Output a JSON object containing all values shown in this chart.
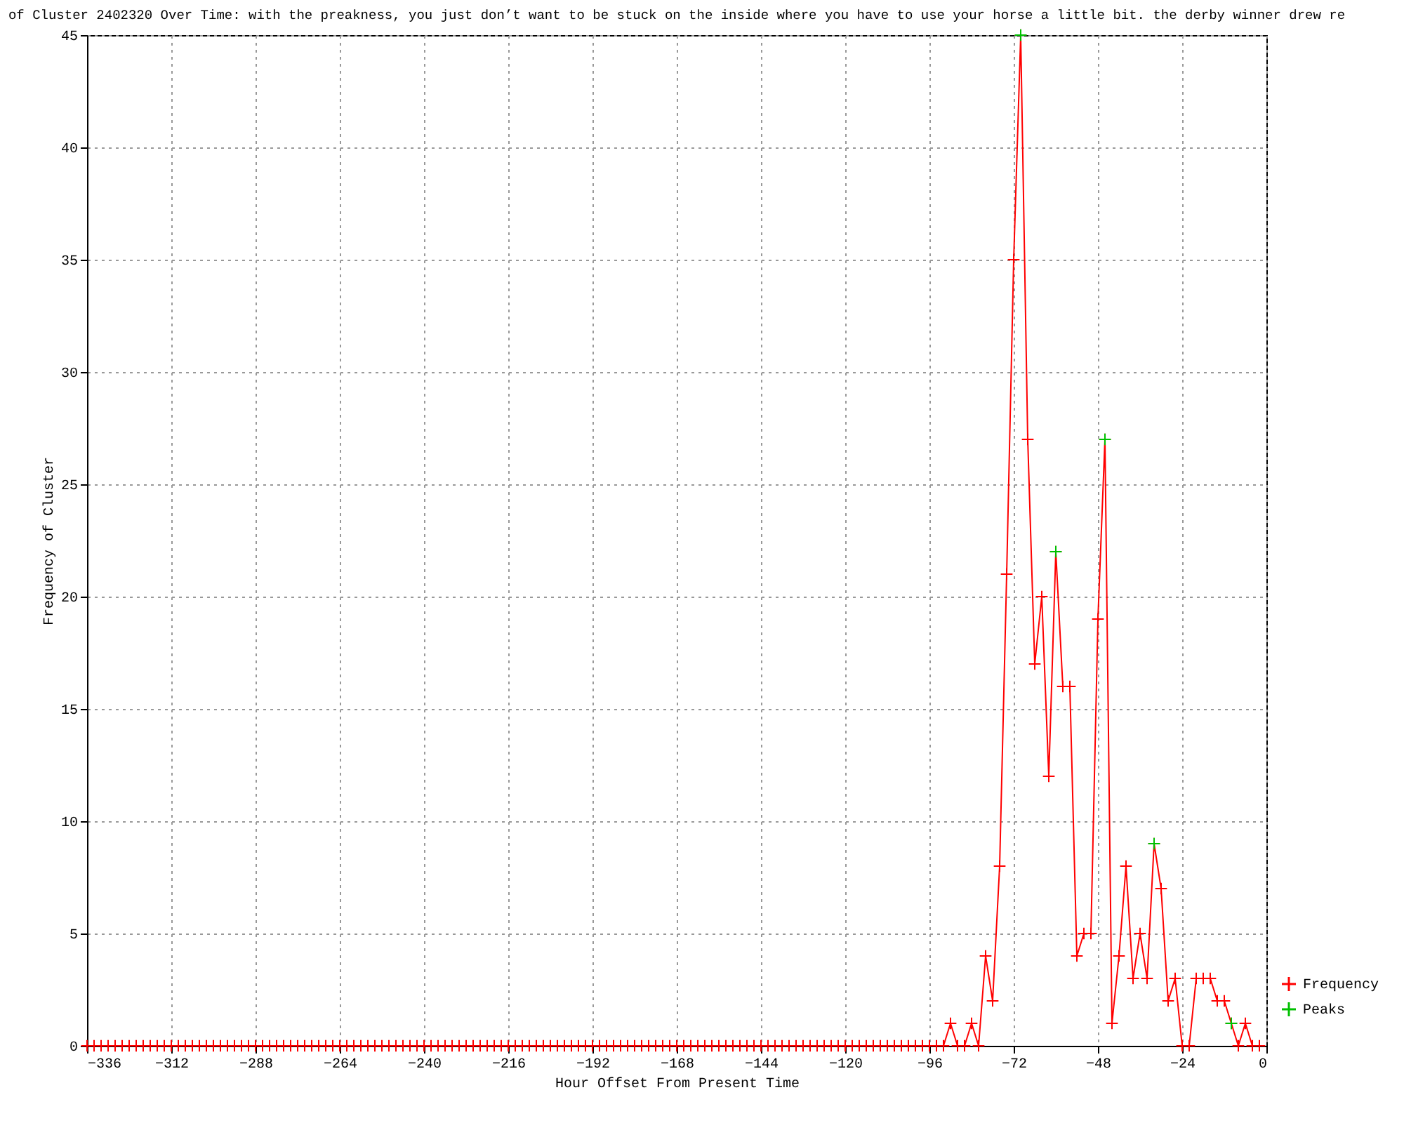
{
  "chart_data": {
    "type": "line",
    "title": "of Cluster 2402320 Over Time: with the preakness, you just don’t want to be stuck on the inside where you have to use your horse a little bit. the derby winner drew re",
    "xlabel": "Hour Offset From Present Time",
    "ylabel": "Frequency of Cluster",
    "xlim": [
      -336,
      0
    ],
    "xticks": [
      -336,
      -312,
      -288,
      -264,
      -240,
      -216,
      -192,
      -168,
      -144,
      -120,
      -96,
      -72,
      -48,
      -24,
      0
    ],
    "ylim": [
      0,
      45
    ],
    "yticks": [
      0,
      5,
      10,
      15,
      20,
      25,
      30,
      35,
      40,
      45
    ],
    "grid": true,
    "legend": "bottom right",
    "series": [
      {
        "name": "Frequency",
        "color": "#ff0000",
        "marker": "cross",
        "x": [
          -336,
          -334,
          -332,
          -330,
          -328,
          -326,
          -324,
          -322,
          -320,
          -318,
          -316,
          -314,
          -312,
          -310,
          -308,
          -306,
          -304,
          -302,
          -300,
          -298,
          -296,
          -294,
          -292,
          -290,
          -288,
          -286,
          -284,
          -282,
          -280,
          -278,
          -276,
          -274,
          -272,
          -270,
          -268,
          -266,
          -264,
          -262,
          -260,
          -258,
          -256,
          -254,
          -252,
          -250,
          -248,
          -246,
          -244,
          -242,
          -240,
          -238,
          -236,
          -234,
          -232,
          -230,
          -228,
          -226,
          -224,
          -222,
          -220,
          -218,
          -216,
          -214,
          -212,
          -210,
          -208,
          -206,
          -204,
          -202,
          -200,
          -198,
          -196,
          -194,
          -192,
          -190,
          -188,
          -186,
          -184,
          -182,
          -180,
          -178,
          -176,
          -174,
          -172,
          -170,
          -168,
          -166,
          -164,
          -162,
          -160,
          -158,
          -156,
          -154,
          -152,
          -150,
          -148,
          -146,
          -144,
          -142,
          -140,
          -138,
          -136,
          -134,
          -132,
          -130,
          -128,
          -126,
          -124,
          -122,
          -120,
          -118,
          -116,
          -114,
          -112,
          -110,
          -108,
          -106,
          -104,
          -102,
          -100,
          -98,
          -96,
          -94,
          -92,
          -90,
          -88,
          -86,
          -84,
          -82,
          -80,
          -78,
          -76,
          -74,
          -72,
          -70,
          -68,
          -66,
          -64,
          -62,
          -60,
          -58,
          -56,
          -54,
          -52,
          -50,
          -48,
          -46,
          -44,
          -42,
          -40,
          -38,
          -36,
          -34,
          -32,
          -30,
          -28,
          -26,
          -24,
          -22,
          -20,
          -18,
          -16,
          -14,
          -12,
          -10,
          -8,
          -6,
          -4,
          -2
        ],
        "values": [
          0,
          0,
          0,
          0,
          0,
          0,
          0,
          0,
          0,
          0,
          0,
          0,
          0,
          0,
          0,
          0,
          0,
          0,
          0,
          0,
          0,
          0,
          0,
          0,
          0,
          0,
          0,
          0,
          0,
          0,
          0,
          0,
          0,
          0,
          0,
          0,
          0,
          0,
          0,
          0,
          0,
          0,
          0,
          0,
          0,
          0,
          0,
          0,
          0,
          0,
          0,
          0,
          0,
          0,
          0,
          0,
          0,
          0,
          0,
          0,
          0,
          0,
          0,
          0,
          0,
          0,
          0,
          0,
          0,
          0,
          0,
          0,
          0,
          0,
          0,
          0,
          0,
          0,
          0,
          0,
          0,
          0,
          0,
          0,
          0,
          0,
          0,
          0,
          0,
          0,
          0,
          0,
          0,
          0,
          0,
          0,
          0,
          0,
          0,
          0,
          0,
          0,
          0,
          0,
          0,
          0,
          0,
          0,
          0,
          0,
          0,
          0,
          0,
          0,
          0,
          0,
          0,
          0,
          0,
          0,
          0,
          0,
          0,
          1,
          0,
          0,
          1,
          0,
          4,
          2,
          8,
          21,
          35,
          45,
          27,
          17,
          20,
          12,
          22,
          16,
          16,
          4,
          5,
          5,
          19,
          27,
          1,
          4,
          8,
          3,
          5,
          3,
          9,
          7,
          2,
          3,
          0,
          0,
          3,
          3,
          3,
          2,
          2,
          1,
          0,
          1,
          0,
          0
        ]
      },
      {
        "name": "Peaks",
        "type": "scatter",
        "color": "#00c000",
        "marker": "cross",
        "x": [
          -70,
          -60,
          -46,
          -32,
          -10
        ],
        "values": [
          45,
          22,
          27,
          9,
          1
        ]
      }
    ]
  }
}
